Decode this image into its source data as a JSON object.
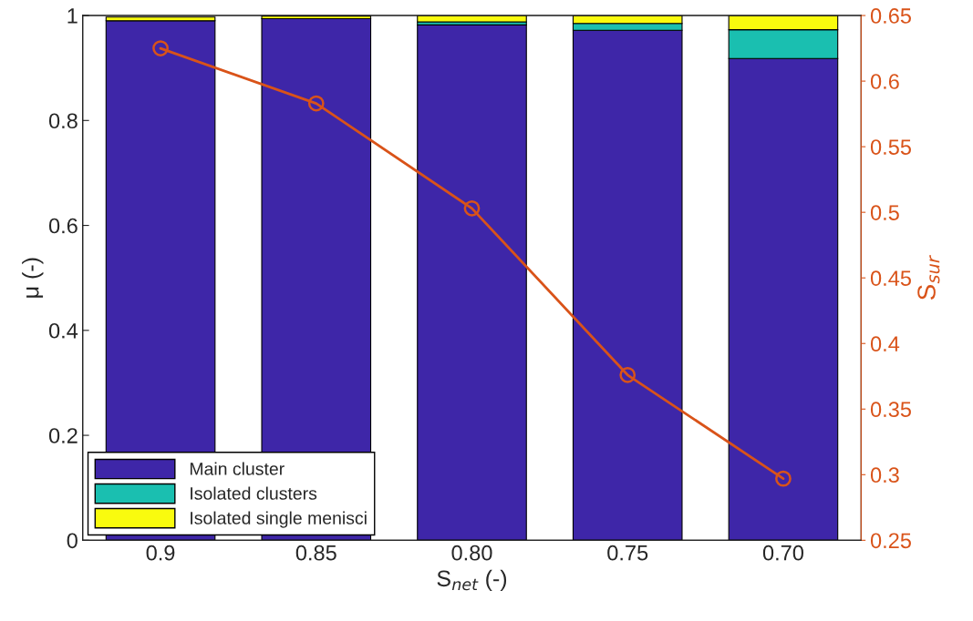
{
  "chart_data": {
    "type": "bar",
    "stacked": true,
    "xlabel": "S$_{net}$ (-)",
    "ylabel": "μ (-)",
    "y2label": "S$_{sur}$",
    "categories": [
      "0.9",
      "0.85",
      "0.80",
      "0.75",
      "0.70"
    ],
    "series": [
      {
        "name": "Main cluster",
        "color": "#3e26a8",
        "values": [
          0.99,
          0.994,
          0.982,
          0.972,
          0.918
        ]
      },
      {
        "name": "Isolated clusters",
        "color": "#1abfb0",
        "values": [
          null,
          null,
          0.006,
          0.013,
          0.055
        ]
      },
      {
        "name": "Isolated single menisci",
        "color": "#f9fb0e",
        "values": [
          0.007,
          0.005,
          0.012,
          0.015,
          0.027
        ]
      },
      {
        "type": "line",
        "axis": "y2",
        "color": "#d95319",
        "marker": "circle",
        "values": [
          0.625,
          0.583,
          0.503,
          0.376,
          0.297
        ]
      }
    ],
    "ylim": [
      0,
      1
    ],
    "yticks": [
      0,
      0.2,
      0.4,
      0.6,
      0.8,
      1
    ],
    "y2lim": [
      0.25,
      0.65
    ],
    "y2ticks": [
      0.25,
      0.3,
      0.35,
      0.4,
      0.45,
      0.5,
      0.55,
      0.6,
      0.65
    ],
    "grid": false,
    "legend": "bottom left"
  }
}
